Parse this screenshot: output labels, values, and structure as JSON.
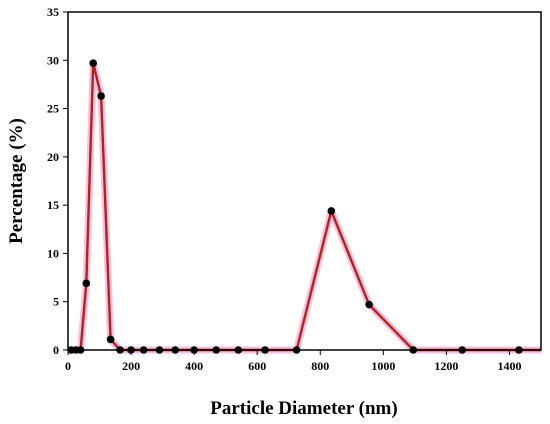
{
  "chart_data": {
    "type": "line",
    "title": "",
    "xlabel": "Particle Diameter (nm)",
    "ylabel": "Percentage (%)",
    "xlim": [
      0,
      1500
    ],
    "ylim": [
      0,
      35
    ],
    "x_ticks": [
      0,
      200,
      400,
      600,
      800,
      1000,
      1200,
      1400
    ],
    "y_ticks": [
      0,
      5,
      10,
      15,
      20,
      25,
      30,
      35
    ],
    "grid": false,
    "legend": "none",
    "colors": {
      "line": "#b22222",
      "marker": "#000000",
      "glow": "#f2b5d6"
    },
    "series": [
      {
        "x": [
          10,
          25,
          40,
          58,
          80,
          105,
          135,
          165,
          200,
          240,
          290,
          340,
          400,
          470,
          540,
          625,
          725,
          835,
          955,
          1095,
          1250,
          1430
        ],
        "y": [
          0,
          0,
          0,
          6.9,
          29.7,
          26.3,
          1.1,
          0,
          0,
          0,
          0,
          0,
          0,
          0,
          0,
          0,
          0,
          14.4,
          4.7,
          0,
          0,
          0
        ]
      }
    ]
  }
}
